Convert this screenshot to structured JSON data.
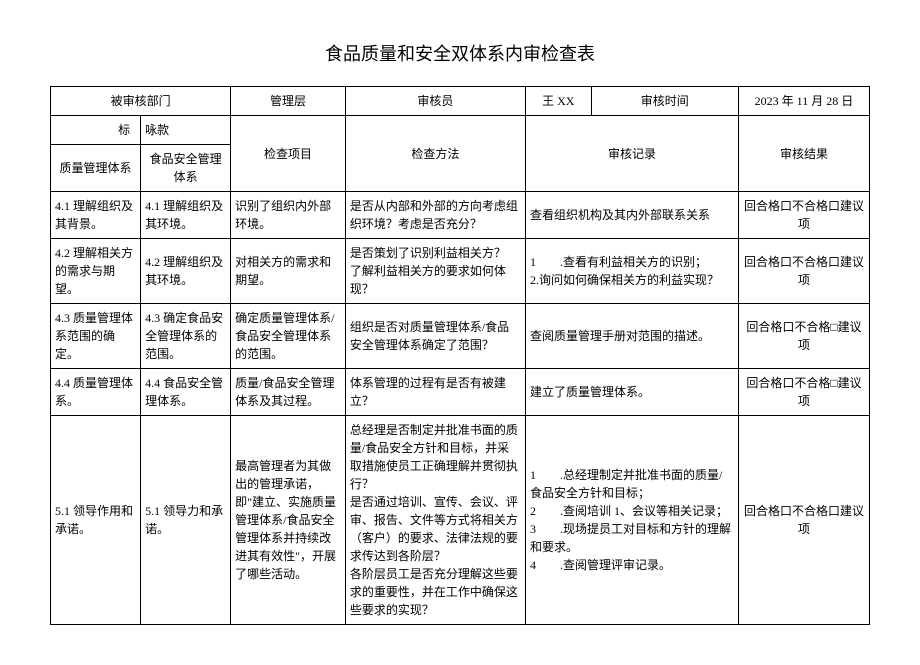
{
  "title": "食品质量和安全双体系内审检查表",
  "header": {
    "dept_label": "被审核部门",
    "level_label": "管理层",
    "auditor_label": "审核员",
    "auditor_value": "王 XX",
    "time_label": "审核时间",
    "time_value": "2023 年 11 月 28 日"
  },
  "columns": {
    "biaozhun": "标",
    "kuan": "咏款",
    "qms": "质量管理体系",
    "fsms": "食品安全管理体系",
    "check_item": "检查项目",
    "check_method": "检查方法",
    "audit_record": "审核记录",
    "audit_result": "审核结果"
  },
  "result_text": "回合格口不合格口建议项",
  "result_text_alt": "回合格口不合格□建议项",
  "rows": [
    {
      "qms": "4.1 理解组织及其背景。",
      "fsms": "4.1 理解组织及其环境。",
      "item": "识别了组织内外部环境。",
      "method": "是否从内部和外部的方向考虑组织环境？考虑是否充分？",
      "record": "查看组织机构及其内外部联系关系"
    },
    {
      "qms": "4.2 理解相关方的需求与期望。",
      "fsms": "4.2 理解组织及其环境。",
      "item": "对相关方的需求和期望。",
      "method": "是否策划了识别利益相关方？\n了解利益相关方的要求如何体现？",
      "record": "1　　.查看有利益相关方的识别；\n2.询问如何确保相关方的利益实现？"
    },
    {
      "qms": "4.3 质量管理体系范围的确定。",
      "fsms": "4.3 确定食品安全管理体系的范围。",
      "item": "确定质量管理体系/食品安全管理体系的范围。",
      "method": "组织是否对质量管理体系/食品安全管理体系确定了范围？",
      "record": "查阅质量管理手册对范围的描述。"
    },
    {
      "qms": "4.4 质量管理体系。",
      "fsms": "4.4 食品安全管理体系。",
      "item": "质量/食品安全管理体系及其过程。",
      "method": "体系管理的过程有是否有被建立？",
      "record": "建立了质量管理体系。"
    },
    {
      "qms": "5.1 领导作用和承诺。",
      "fsms": "5.1 领导力和承诺。",
      "item": "最高管理者为其做出的管理承诺，即\"建立、实施质量管理体系/食品安全管理体系并持续改进其有效性\"，开展了哪些活动。",
      "method": "总经理是否制定并批准书面的质量/食品安全方针和目标，并采取措施使员工正确理解并贯彻执行？\n是否通过培训、宣传、会议、评审、报告、文件等方式将相关方（客户）的要求、法律法规的要求传达到各阶层？\n各阶层员工是否充分理解这些要求的重要性，并在工作中确保这些要求的实现？",
      "record": "1　　.总经理制定并批准书面的质量/食品安全方针和目标；\n2　　.查阅培训 1、会议等相关记录；\n3　　.现场提员工对目标和方针的理解和要求。\n4　　.查阅管理评审记录。"
    }
  ]
}
